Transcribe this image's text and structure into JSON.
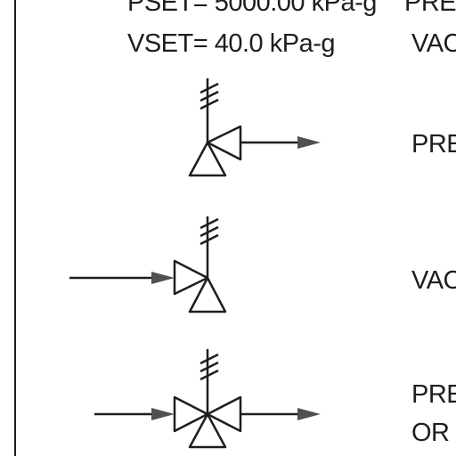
{
  "settings": {
    "pset": "PSET= 5000.00 kPa-g",
    "vset": "VSET= 40.0 kPa-g"
  },
  "legend": {
    "top_line1": "PRE",
    "top_line2": "VAC",
    "row1": "PRE",
    "row2": "VAC",
    "row3_line1": "PRE",
    "row3_line2": "OR"
  },
  "colors": {
    "ink": "#1e1e1e",
    "arrow_fill": "#505050",
    "background": "#ffffff"
  },
  "icons": [
    "pressure-relief-valve-icon",
    "vacuum-relief-valve-icon",
    "pressure-vacuum-relief-valve-icon"
  ]
}
